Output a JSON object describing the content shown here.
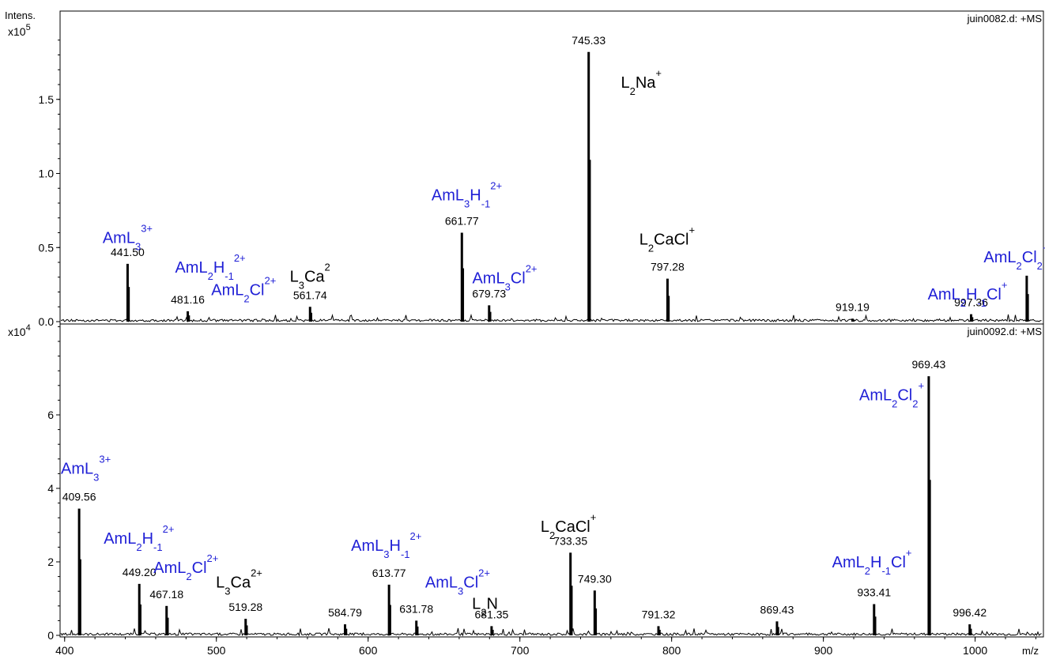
{
  "chart_data": [
    {
      "type": "line",
      "panel": "top",
      "ylabel": "Intens.",
      "multiplier": "x10",
      "multiplier_exp": "5",
      "dataset": "juin0082.d: +MS",
      "yticks": [
        "0.0",
        "0.5",
        "1.0",
        "1.5"
      ],
      "ylim": [
        0,
        1.5
      ],
      "peaks": [
        {
          "x": 441.5,
          "y": 0.39,
          "label": "441.50"
        },
        {
          "x": 481.16,
          "y": 0.07,
          "label": "481.16"
        },
        {
          "x": 561.74,
          "y": 0.1,
          "label": "561.74"
        },
        {
          "x": 661.77,
          "y": 0.6,
          "label": "661.77"
        },
        {
          "x": 679.73,
          "y": 0.11,
          "label": "679.73"
        },
        {
          "x": 745.33,
          "y": 1.82,
          "label": "745.33"
        },
        {
          "x": 797.28,
          "y": 0.29,
          "label": "797.28"
        },
        {
          "x": 919.19,
          "y": 0.02,
          "label": "919.19"
        },
        {
          "x": 997.36,
          "y": 0.05,
          "label": "997.36"
        },
        {
          "x": 1034.0,
          "y": 0.31,
          "label": ""
        }
      ],
      "annotations": [
        {
          "x": 441.5,
          "y": 0.53,
          "color": "blue",
          "parts": [
            [
              "AmL",
              ""
            ],
            [
              "3",
              "sub"
            ],
            [
              "3+",
              "sup"
            ]
          ]
        },
        {
          "x": 496,
          "y": 0.33,
          "color": "blue",
          "parts": [
            [
              "AmL",
              ""
            ],
            [
              "2",
              "sub"
            ],
            [
              "H",
              ""
            ],
            [
              "-1",
              "sub"
            ],
            [
              "2+",
              "sup"
            ]
          ]
        },
        {
          "x": 518,
          "y": 0.18,
          "color": "blue",
          "parts": [
            [
              "AmL",
              ""
            ],
            [
              "2",
              "sub"
            ],
            [
              "Cl",
              ""
            ],
            [
              "2+",
              "sup"
            ]
          ]
        },
        {
          "x": 561.7,
          "y": 0.27,
          "color": "black",
          "parts": [
            [
              "L",
              ""
            ],
            [
              "3",
              "sub"
            ],
            [
              "Ca",
              ""
            ],
            [
              "2",
              "sup"
            ]
          ]
        },
        {
          "x": 665,
          "y": 0.82,
          "color": "blue",
          "parts": [
            [
              "AmL",
              ""
            ],
            [
              "3",
              "sub"
            ],
            [
              "H",
              ""
            ],
            [
              "-1",
              "sub"
            ],
            [
              "2+",
              "sup"
            ]
          ]
        },
        {
          "x": 690,
          "y": 0.26,
          "color": "blue",
          "parts": [
            [
              "AmL",
              ""
            ],
            [
              "3",
              "sub"
            ],
            [
              "Cl",
              ""
            ],
            [
              "2+",
              "sup"
            ]
          ]
        },
        {
          "x": 780,
          "y": 1.58,
          "color": "black",
          "parts": [
            [
              "L",
              ""
            ],
            [
              "2",
              "sub"
            ],
            [
              "Na",
              ""
            ],
            [
              "+",
              "sup"
            ]
          ]
        },
        {
          "x": 797,
          "y": 0.52,
          "color": "black",
          "parts": [
            [
              "L",
              ""
            ],
            [
              "2",
              "sub"
            ],
            [
              "CaCl",
              ""
            ],
            [
              "+",
              "sup"
            ]
          ]
        },
        {
          "x": 1027,
          "y": 0.4,
          "color": "blue",
          "parts": [
            [
              "AmL",
              ""
            ],
            [
              "2",
              "sub"
            ],
            [
              "Cl",
              ""
            ],
            [
              "2",
              "sub"
            ],
            [
              "+",
              "sup"
            ]
          ]
        },
        {
          "x": 995,
          "y": 0.15,
          "color": "blue",
          "parts": [
            [
              "AmL",
              ""
            ],
            [
              "2",
              "sub"
            ],
            [
              "H",
              ""
            ],
            [
              "-1",
              "sub"
            ],
            [
              "Cl",
              ""
            ],
            [
              "+",
              "sup"
            ]
          ]
        }
      ]
    },
    {
      "type": "line",
      "panel": "bottom",
      "multiplier": "x10",
      "multiplier_exp": "4",
      "dataset": "juin0092.d: +MS",
      "xlabel": "m/z",
      "yticks": [
        "0",
        "2",
        "4",
        "6"
      ],
      "ylim": [
        0,
        7
      ],
      "peaks": [
        {
          "x": 409.56,
          "y": 3.45,
          "label": "409.56"
        },
        {
          "x": 449.2,
          "y": 1.4,
          "label": "449.20"
        },
        {
          "x": 467.18,
          "y": 0.8,
          "label": "467.18"
        },
        {
          "x": 519.28,
          "y": 0.45,
          "label": "519.28"
        },
        {
          "x": 584.79,
          "y": 0.3,
          "label": "584.79"
        },
        {
          "x": 613.77,
          "y": 1.38,
          "label": "613.77"
        },
        {
          "x": 631.78,
          "y": 0.4,
          "label": "631.78"
        },
        {
          "x": 681.35,
          "y": 0.25,
          "label": "681.35"
        },
        {
          "x": 733.35,
          "y": 2.25,
          "label": "733.35"
        },
        {
          "x": 749.3,
          "y": 1.22,
          "label": "749.30"
        },
        {
          "x": 791.32,
          "y": 0.25,
          "label": "791.32"
        },
        {
          "x": 869.43,
          "y": 0.38,
          "label": "869.43"
        },
        {
          "x": 933.41,
          "y": 0.85,
          "label": "933.41"
        },
        {
          "x": 969.43,
          "y": 7.05,
          "label": "969.43"
        },
        {
          "x": 996.42,
          "y": 0.3,
          "label": "996.42"
        }
      ],
      "annotations": [
        {
          "x": 414,
          "y": 4.4,
          "color": "blue",
          "parts": [
            [
              "AmL",
              ""
            ],
            [
              "3",
              "sub"
            ],
            [
              "3+",
              "sup"
            ]
          ]
        },
        {
          "x": 449,
          "y": 2.5,
          "color": "blue",
          "parts": [
            [
              "AmL",
              ""
            ],
            [
              "2",
              "sub"
            ],
            [
              "H",
              ""
            ],
            [
              "-1",
              "sub"
            ],
            [
              "2+",
              "sup"
            ]
          ]
        },
        {
          "x": 480,
          "y": 1.7,
          "color": "blue",
          "parts": [
            [
              "AmL",
              ""
            ],
            [
              "2",
              "sub"
            ],
            [
              "Cl",
              ""
            ],
            [
              "2+",
              "sup"
            ]
          ]
        },
        {
          "x": 515,
          "y": 1.3,
          "color": "black",
          "parts": [
            [
              "L",
              ""
            ],
            [
              "3",
              "sub"
            ],
            [
              "Ca",
              ""
            ],
            [
              "2+",
              "sup"
            ]
          ]
        },
        {
          "x": 612,
          "y": 2.3,
          "color": "blue",
          "parts": [
            [
              "AmL",
              ""
            ],
            [
              "3",
              "sub"
            ],
            [
              "H",
              ""
            ],
            [
              "-1",
              "sub"
            ],
            [
              "2+",
              "sup"
            ]
          ]
        },
        {
          "x": 659,
          "y": 1.3,
          "color": "blue",
          "parts": [
            [
              "AmL",
              ""
            ],
            [
              "3",
              "sub"
            ],
            [
              "Cl",
              ""
            ],
            [
              "2+",
              "sup"
            ]
          ]
        },
        {
          "x": 677,
          "y": 0.72,
          "color": "black",
          "parts": [
            [
              "L",
              ""
            ],
            [
              "2",
              "sub"
            ],
            [
              "N",
              ""
            ]
          ]
        },
        {
          "x": 732,
          "y": 2.82,
          "color": "black",
          "parts": [
            [
              "L",
              ""
            ],
            [
              "2",
              "sub"
            ],
            [
              "CaCl",
              ""
            ],
            [
              "+",
              "sup"
            ]
          ]
        },
        {
          "x": 932,
          "y": 1.85,
          "color": "blue",
          "parts": [
            [
              "AmL",
              ""
            ],
            [
              "2",
              "sub"
            ],
            [
              "H",
              ""
            ],
            [
              "-1",
              "sub"
            ],
            [
              "Cl",
              ""
            ],
            [
              "+",
              "sup"
            ]
          ]
        },
        {
          "x": 945,
          "y": 6.4,
          "color": "blue",
          "parts": [
            [
              "AmL",
              ""
            ],
            [
              "2",
              "sub"
            ],
            [
              "Cl",
              ""
            ],
            [
              "2",
              "sub"
            ],
            [
              "+",
              "sup"
            ]
          ]
        }
      ]
    }
  ],
  "x_axis": {
    "range": [
      397,
      1045
    ],
    "ticks": [
      "400",
      "500",
      "600",
      "700",
      "800",
      "900",
      "1000"
    ],
    "label": "m/z"
  },
  "colors": {
    "annotation_blue": "#1f1fd6",
    "trace": "#000000"
  }
}
